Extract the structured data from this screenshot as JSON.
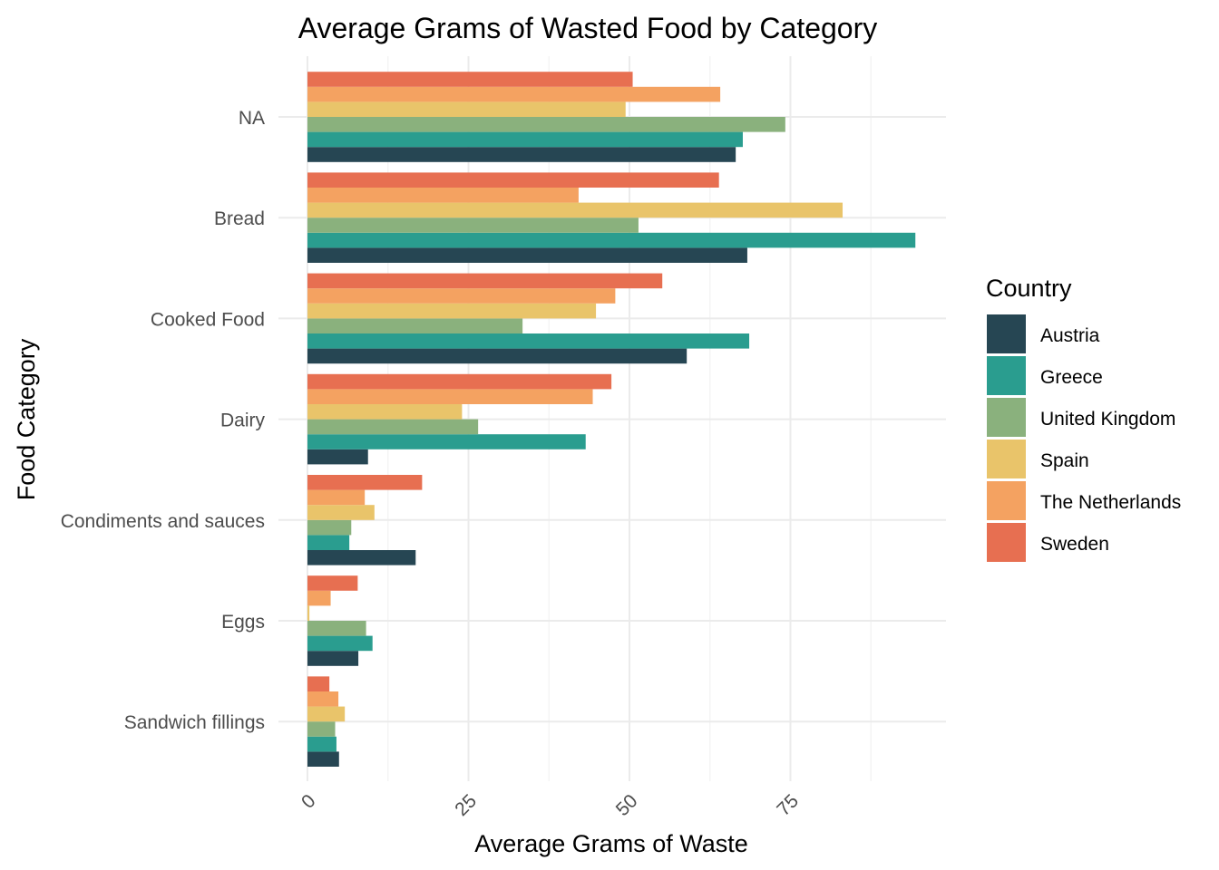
{
  "chart_data": {
    "type": "bar",
    "orientation": "horizontal",
    "title": "Average Grams of Wasted Food by Category",
    "xlabel": "Average Grams of Waste",
    "ylabel": "Food Category",
    "xlim": [
      0,
      99
    ],
    "x_ticks": [
      0,
      25,
      50,
      75
    ],
    "x_tick_labels": [
      "0",
      "25",
      "50",
      "75"
    ],
    "grid": true,
    "legend": {
      "title": "Country",
      "position": "right"
    },
    "categories": [
      "NA",
      "Bread",
      "Cooked Food",
      "Dairy",
      "Condiments and sauces",
      "Eggs",
      "Sandwich fillings"
    ],
    "series": [
      {
        "name": "Austria",
        "color": "#264653",
        "values": [
          66.5,
          68.3,
          58.9,
          9.4,
          16.8,
          7.9,
          4.9
        ]
      },
      {
        "name": "Greece",
        "color": "#2a9d8f",
        "values": [
          67.6,
          94.4,
          68.6,
          43.2,
          6.5,
          10.1,
          4.5
        ]
      },
      {
        "name": "United Kingdom",
        "color": "#8ab17d",
        "values": [
          74.2,
          51.4,
          33.4,
          26.5,
          6.8,
          9.1,
          4.3
        ]
      },
      {
        "name": "Spain",
        "color": "#e9c46a",
        "values": [
          49.4,
          83.1,
          44.8,
          24.0,
          10.4,
          0.3,
          5.8
        ]
      },
      {
        "name": "The Netherlands",
        "color": "#f4a261",
        "values": [
          64.1,
          42.1,
          47.8,
          44.3,
          8.9,
          3.6,
          4.8
        ]
      },
      {
        "name": "Sweden",
        "color": "#e76f51",
        "values": [
          50.5,
          63.9,
          55.1,
          47.2,
          17.8,
          7.8,
          3.4
        ]
      }
    ]
  }
}
